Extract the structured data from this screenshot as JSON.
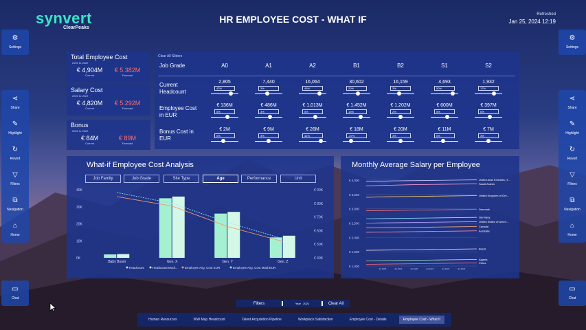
{
  "app": {
    "logo_top": "synvert",
    "logo_bottom": "ClearPeaks",
    "title": "HR  EMPLOYEE COST - WHAT IF",
    "refreshed_label": "Refreshed",
    "refreshed_date": "Jan 25, 2024 12:19"
  },
  "left_rail": {
    "top": [
      {
        "label": "Settings",
        "icon": "gear-icon"
      }
    ],
    "middle": [
      {
        "label": "Share",
        "icon": "share-icon"
      },
      {
        "label": "Highlight",
        "icon": "highlight-icon"
      },
      {
        "label": "Revert",
        "icon": "revert-icon"
      },
      {
        "label": "Filters",
        "icon": "filter-icon"
      },
      {
        "label": "Navigation",
        "icon": "navigation-icon"
      },
      {
        "label": "Home",
        "icon": "home-icon"
      }
    ],
    "bottom": [
      {
        "label": "Chat",
        "icon": "chat-icon"
      }
    ]
  },
  "kpis": [
    {
      "title": "Total Employee Cost",
      "sub": "2020 to 2022",
      "current": "€ 4,904M",
      "forecast": "€ 5.382M",
      "current_label": "Current",
      "forecast_label": "Forecast"
    },
    {
      "title": "Salary Cost",
      "sub": "2020 to 2022",
      "current": "€ 4,820M",
      "forecast": "€ 5.292M",
      "current_label": "Current",
      "forecast_label": "Forecast"
    },
    {
      "title": "Bonus",
      "sub": "2020 to 2022",
      "current": "€ 84M",
      "forecast": "€ 89M",
      "current_label": "Current",
      "forecast_label": "Forecast"
    }
  ],
  "grid": {
    "clear_all": "Clear All Sliders",
    "header_label": "Job Grade",
    "grades": [
      "A0",
      "A1",
      "A2",
      "B1",
      "B2",
      "S1",
      "S2"
    ],
    "rows": [
      {
        "label_1": "Current",
        "label_2": "Headcount",
        "values": [
          "2,805",
          "7,440",
          "16,064",
          "30,602",
          "16,159",
          "4,693",
          "1,932"
        ],
        "pcts": [
          "42%",
          "3%",
          "46%",
          "20%",
          "3%",
          "50%",
          "17%"
        ],
        "knobs": [
          0.72,
          0.45,
          0.75,
          0.55,
          0.45,
          0.8,
          0.7
        ]
      },
      {
        "label_1": "Employee Cost",
        "label_2": "in EUR",
        "values": [
          "€ 136M",
          "€ 486M",
          "€ 1,013M",
          "€ 1,452M",
          "€ 1,202M",
          "€ 600M",
          "€ 397M"
        ],
        "pcts": [
          "5%",
          "3%",
          "5%",
          "13%",
          "2%",
          "5%",
          "6%"
        ],
        "knobs": [
          0.6,
          0.55,
          0.6,
          0.65,
          0.5,
          0.6,
          0.55
        ]
      },
      {
        "label_1": "Bonus Cost in",
        "label_2": "EUR",
        "values": [
          "€ 2M",
          "€ 9M",
          "€ 26M",
          "€ 18M",
          "€ 20M",
          "€ 11M",
          "€ 7M"
        ],
        "pcts": [
          "0%",
          "3%",
          "41%",
          "-27%",
          "3%",
          "0%",
          "3%"
        ],
        "knobs": [
          0.45,
          0.5,
          0.8,
          0.3,
          0.5,
          0.45,
          0.5
        ]
      }
    ]
  },
  "whatif_chart": {
    "title": "What-if Employee Cost Analysis",
    "tabs": [
      "Job Family",
      "Job Grade",
      "Site Type",
      "Age",
      "Performance",
      "Unit"
    ],
    "active_tab": "Age",
    "chart_data": {
      "type": "bar",
      "categories": [
        "Baby Boom",
        "Gen. X",
        "Gen. Y",
        "Gen. Z"
      ],
      "series": [
        {
          "name": "Headcount",
          "values": [
            2000,
            35000,
            26000,
            12000
          ]
        },
        {
          "name": "Headcount Modi...",
          "values": [
            2200,
            36000,
            27000,
            13000
          ]
        },
        {
          "name": "Employee Avg. Cost EUR",
          "values": [
            85000,
            78000,
            63000,
            52000
          ]
        },
        {
          "name": "Employee Avg. Cost Modi EUR",
          "values": [
            88000,
            80000,
            66000,
            54000
          ]
        }
      ],
      "y_ticks": [
        "0K",
        "10K",
        "20K",
        "30K",
        "40K"
      ],
      "y2_ticks": [
        "€ 40K",
        "€ 50K",
        "€ 60K",
        "€ 70K",
        "€ 80K",
        "€ 90K"
      ],
      "ylim": [
        0,
        40000
      ],
      "y2lim": [
        40000,
        90000
      ]
    }
  },
  "salary_chart": {
    "title": "Monthly Average Salary per Employee",
    "chart_data": {
      "type": "line",
      "y_ticks": [
        "€ 1,000",
        "€ 1,500",
        "€ 2,000",
        "€ 2,500",
        "€ 3,000",
        "€ 3,500",
        "€ 4,000"
      ],
      "ylim": [
        1000,
        4000
      ],
      "x_ticks": [
        "Jul 2018",
        "Jul 2019",
        "Jul 2020",
        "Jul 2021",
        "Jul 2022",
        "Jul 2023"
      ],
      "series": [
        {
          "name": "United Arab Emirates (T...",
          "values": [
            3950,
            3970,
            3980,
            3990,
            4000,
            4010
          ],
          "color": "#c0c8ff"
        },
        {
          "name": "Saudi Arabia",
          "values": [
            3800,
            3820,
            3840,
            3850,
            3860,
            3870
          ],
          "color": "#ff9ad1"
        },
        {
          "name": "United Kingdom of Gre...",
          "values": [
            3400,
            3420,
            3430,
            3440,
            3450,
            3460
          ],
          "color": "#ffd36b"
        },
        {
          "name": "Denmark",
          "values": [
            2930,
            2940,
            2950,
            2960,
            2970,
            2980
          ],
          "color": "#ff7070"
        },
        {
          "name": "Germany",
          "values": [
            2650,
            2660,
            2670,
            2680,
            2690,
            2700
          ],
          "color": "#8fe3ff"
        },
        {
          "name": "United States of Ameri...",
          "values": [
            2500,
            2510,
            2520,
            2530,
            2540,
            2550
          ],
          "color": "#b9a3ff"
        },
        {
          "name": "Canada",
          "values": [
            2330,
            2340,
            2350,
            2360,
            2370,
            2380
          ],
          "color": "#ffb07a"
        },
        {
          "name": "Australia",
          "values": [
            2180,
            2190,
            2200,
            2210,
            2220,
            2230
          ],
          "color": "#ff8fb0"
        },
        {
          "name": "Brazil",
          "values": [
            1550,
            1560,
            1570,
            1580,
            1590,
            1600
          ],
          "color": "#e0e0e0"
        },
        {
          "name": "Algeria",
          "values": [
            1180,
            1190,
            1200,
            1210,
            1220,
            1230
          ],
          "color": "#9ee0b0"
        },
        {
          "name": "China",
          "values": [
            1060,
            1070,
            1080,
            1090,
            1100,
            1110
          ],
          "color": "#ff6a6a"
        }
      ]
    }
  },
  "filterbar": {
    "filters_label": "Filters",
    "year_label": "Year",
    "year_value": "2021",
    "clear_all": "Clear All"
  },
  "pages": [
    "Human Resources",
    "WW Map Headcount",
    "Talent Acquisition Pipeline",
    "Workplace Satisfaction",
    "Employee Cost - Details",
    "Employee Cost - What If"
  ],
  "active_page": "Employee Cost - What If"
}
